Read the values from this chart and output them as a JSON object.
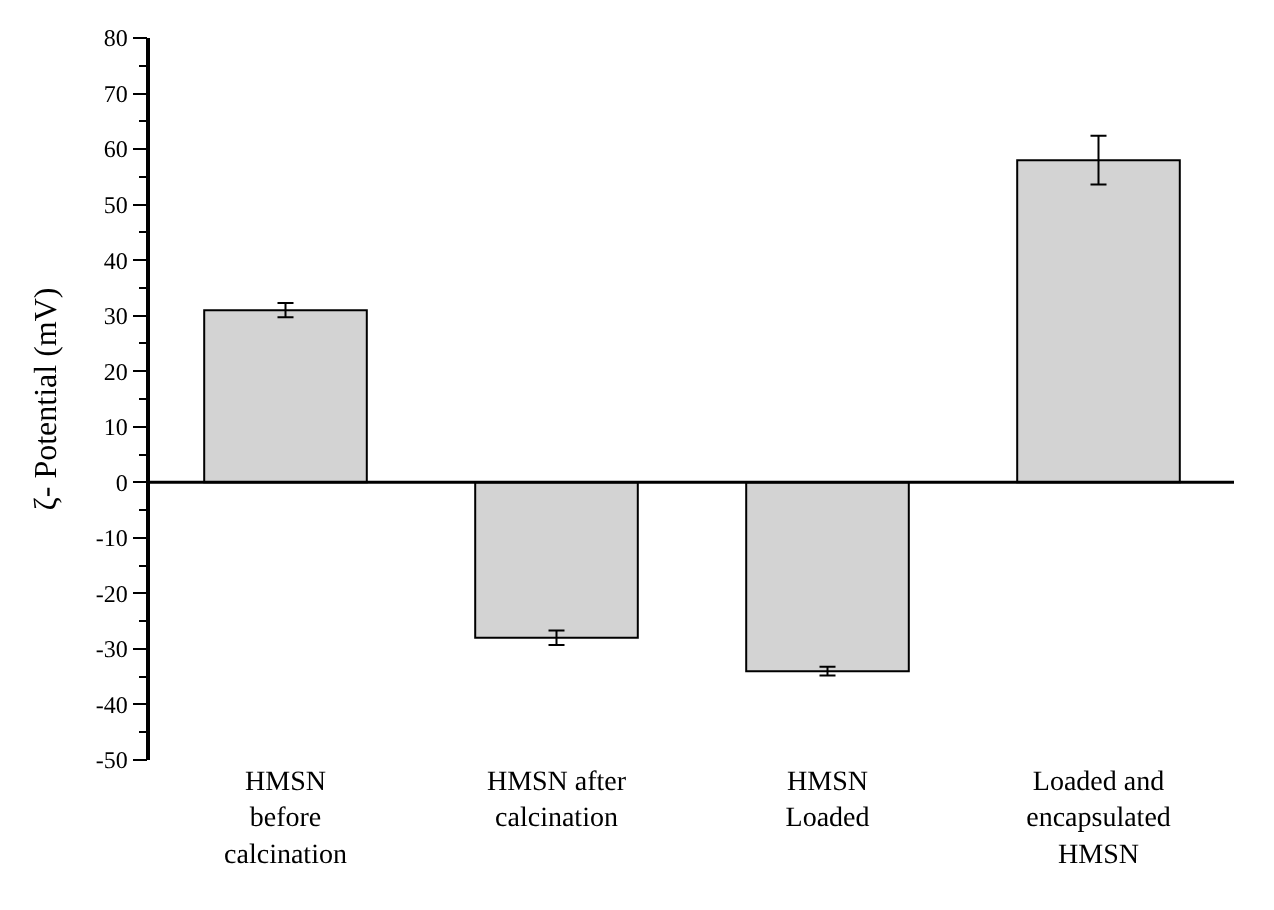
{
  "chart_data": {
    "type": "bar",
    "ylabel": "ζ- Potential (mV)",
    "categories": [
      "HMSN before calcination",
      "HMSN after calcination",
      "HMSN Loaded",
      "Loaded and encapsulated HMSN"
    ],
    "values": [
      31,
      -28,
      -34,
      58
    ],
    "errors": [
      1.3,
      1.3,
      0.8,
      4.4
    ],
    "color": "#d3d3d3",
    "ylim": [
      -50,
      80
    ],
    "yticks": [
      -50,
      -40,
      -30,
      -20,
      -10,
      0,
      10,
      20,
      30,
      40,
      50,
      60,
      70,
      80
    ],
    "ref_lines": [
      {
        "axis": "y",
        "value": 0,
        "color": "#000000",
        "line_style": "solid"
      }
    ],
    "legend": false
  }
}
